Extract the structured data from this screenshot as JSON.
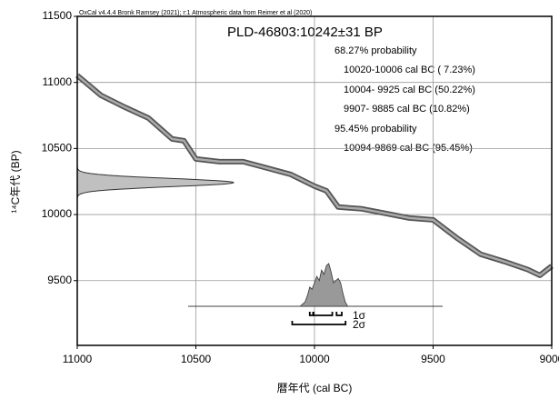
{
  "chart_data": {
    "type": "line",
    "header": "OxCal v4.4.4 Bronk Ramsey (2021); r:1 Atmospheric data from Reimer et al (2020)",
    "title": "PLD-46803:10242±31 BP",
    "annotations": [
      "68.27% probability",
      "10020-10006 cal BC ( 7.23%)",
      "10004- 9925 cal BC (50.22%)",
      "9907- 9885 cal BC (10.82%)",
      "95.45% probability",
      "10094-9869 cal BC (95.45%)"
    ],
    "x_label": "暦年代 (cal BC)",
    "y_label": "¹⁴C年代 (BP)",
    "xlim": [
      11000,
      9000
    ],
    "xticks": [
      11000,
      10500,
      10000,
      9500,
      9000
    ],
    "ylim": [
      9010,
      11500
    ],
    "yticks": [
      9500,
      10000,
      10500,
      11000,
      11500
    ],
    "grid": true,
    "measurement": {
      "mean": 10242,
      "error": 31,
      "color": "#c0c0c0"
    },
    "series": [
      {
        "name": "curve",
        "color": "#555555",
        "x": [
          11000,
          10900,
          10800,
          10700,
          10600,
          10550,
          10500,
          10400,
          10300,
          10200,
          10100,
          10000,
          9950,
          9900,
          9800,
          9700,
          9600,
          9500,
          9400,
          9300,
          9200,
          9100,
          9050,
          9000
        ],
        "values": [
          11053,
          10902,
          10813,
          10730,
          10572,
          10558,
          10421,
          10400,
          10400,
          10352,
          10304,
          10215,
          10180,
          10057,
          10043,
          10009,
          9974,
          9960,
          9823,
          9700,
          9645,
          9583,
          9540,
          9610
        ]
      },
      {
        "name": "posterior",
        "color": "#999999",
        "x": [
          10060,
          10050,
          10040,
          10030,
          10020,
          10010,
          10000,
          9990,
          9980,
          9970,
          9960,
          9950,
          9940,
          9930,
          9920,
          9910,
          9900,
          9890,
          9880,
          9870,
          9860
        ],
        "values": [
          0,
          0.05,
          0.1,
          0.25,
          0.45,
          0.4,
          0.55,
          0.7,
          0.6,
          0.85,
          0.75,
          0.95,
          1.0,
          0.8,
          0.55,
          0.6,
          0.65,
          0.55,
          0.3,
          0.1,
          0
        ]
      }
    ],
    "ranges": [
      {
        "label": "1σ",
        "spans": [
          [
            10020,
            10006
          ],
          [
            10004,
            9925
          ],
          [
            9907,
            9885
          ]
        ]
      },
      {
        "label": "2σ",
        "spans": [
          [
            10094,
            9869
          ]
        ]
      }
    ]
  }
}
